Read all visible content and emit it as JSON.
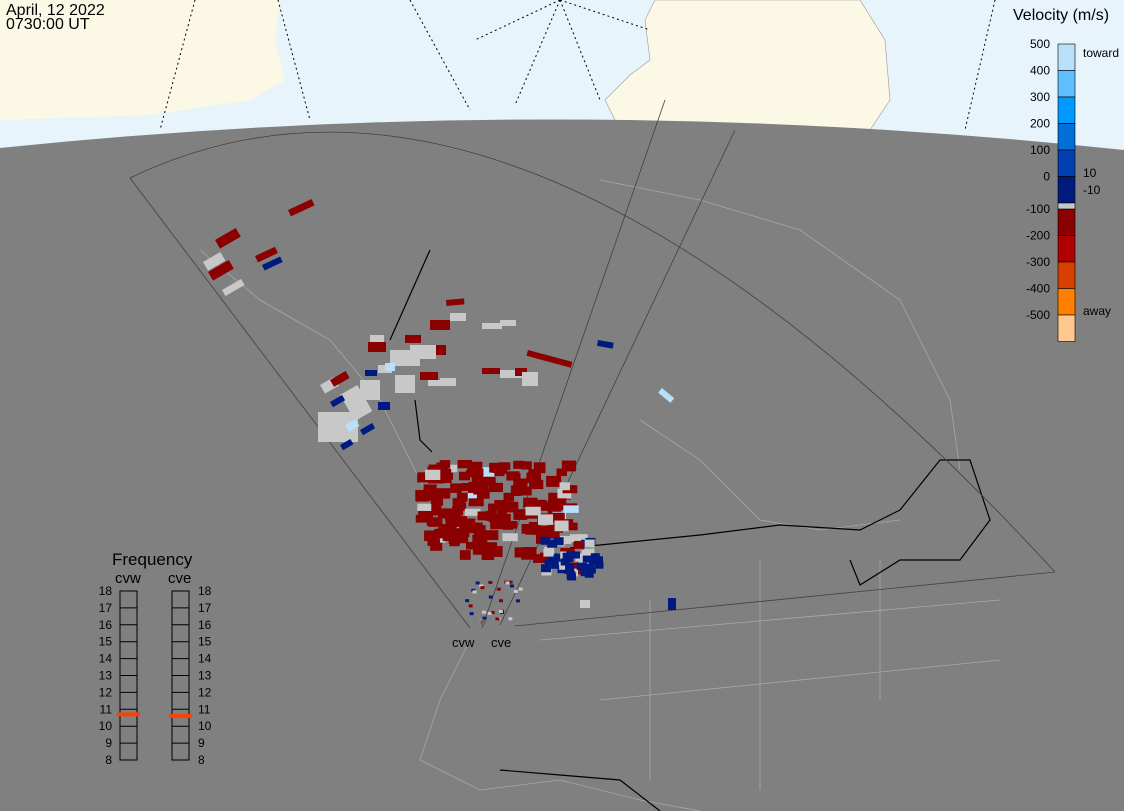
{
  "header": {
    "date": "April, 12 2022",
    "time": "0730:00 UT"
  },
  "colors": {
    "space": "#e8f4fc",
    "land_polar": "#fbf8e6",
    "earth": "#808080",
    "coast": "#a8a8a8",
    "fan": "#404040"
  },
  "velocity_scale": {
    "title": "Velocity (m/s)",
    "ticks": [
      "500",
      "400",
      "300",
      "200",
      "100",
      "0",
      "-100",
      "-200",
      "-300",
      "-400",
      "-500"
    ],
    "toward_label": "toward",
    "away_label": "away",
    "threshold_pos": "10",
    "threshold_neg": "-10",
    "colors": [
      "#b8e0fa",
      "#60c0ff",
      "#0099ff",
      "#0070d8",
      "#0040b0",
      "#001a80",
      "#8b0000",
      "#b00000",
      "#d84000",
      "#ff8000",
      "#ffc890"
    ],
    "ground_scatter_color": "#c8c8c8"
  },
  "frequency": {
    "title": "Frequency",
    "radars": [
      {
        "name": "cvw",
        "value_mhz": 10.7
      },
      {
        "name": "cve",
        "value_mhz": 10.6
      }
    ],
    "ticks": [
      "18",
      "17",
      "16",
      "15",
      "14",
      "13",
      "12",
      "11",
      "10",
      "9",
      "8"
    ],
    "marker_color": "#ff4000"
  },
  "radar_labels": [
    "cvw",
    "cve"
  ]
}
